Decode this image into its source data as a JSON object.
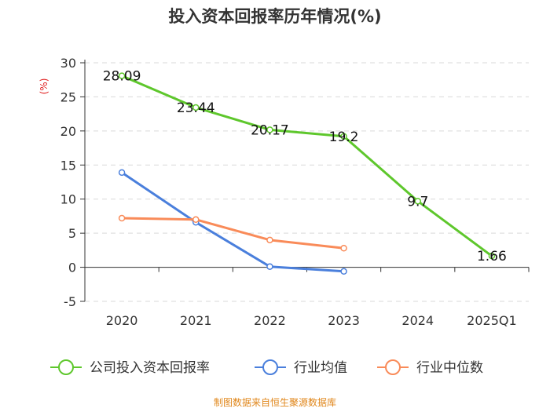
{
  "chart_data": {
    "type": "line",
    "title": "投入资本回报率历年情况(%)",
    "y_unit": "(%)",
    "categories": [
      "2020",
      "2021",
      "2022",
      "2023",
      "2024",
      "2025Q1"
    ],
    "ylim": [
      -5,
      30
    ],
    "yticks": [
      -5,
      0,
      5,
      10,
      15,
      20,
      25,
      30
    ],
    "grid": true,
    "legend_position": "bottom",
    "series": [
      {
        "name": "公司投入资本回报率",
        "color": "#5ec72c",
        "values": [
          28.09,
          23.44,
          20.17,
          19.2,
          9.7,
          1.66
        ],
        "show_labels": true
      },
      {
        "name": "行业均值",
        "color": "#4a7fdc",
        "values": [
          13.9,
          6.6,
          0.1,
          -0.6,
          null,
          null
        ],
        "show_labels": false
      },
      {
        "name": "行业中位数",
        "color": "#f98b59",
        "values": [
          7.2,
          7.0,
          4.0,
          2.8,
          null,
          null
        ],
        "show_labels": false
      }
    ]
  },
  "source_text": "制图数据来自恒生聚源数据库"
}
